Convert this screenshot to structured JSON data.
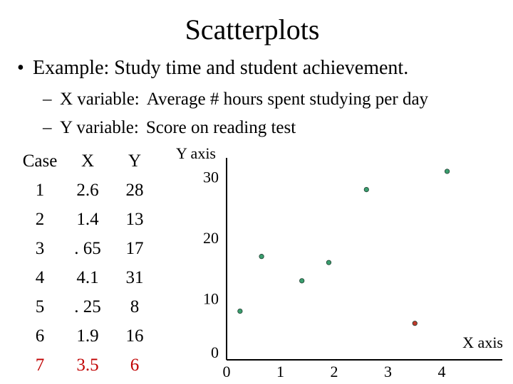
{
  "slide": {
    "title": "Scatterplots",
    "bullet": "Example:  Study time and student achievement.",
    "sub1_label": "X variable:",
    "sub1_text": "Average # hours spent studying per day",
    "sub2_label": "Y variable:",
    "sub2_text": "Score on reading test"
  },
  "table": {
    "headers": [
      "Case",
      "X",
      "Y"
    ],
    "rows": [
      {
        "case": "1",
        "x": "2.6",
        "y": "28"
      },
      {
        "case": "2",
        "x": "1.4",
        "y": "13"
      },
      {
        "case": "3",
        "x": ". 65",
        "y": "17"
      },
      {
        "case": "4",
        "x": "4.1",
        "y": "31"
      },
      {
        "case": "5",
        "x": ". 25",
        "y": "8"
      },
      {
        "case": "6",
        "x": "1.9",
        "y": "16"
      },
      {
        "case": "7",
        "x": "3.5",
        "y": "6"
      }
    ],
    "highlight_color": "#c00000"
  },
  "chart_data": {
    "type": "scatter",
    "xlabel": "X axis",
    "ylabel": "Y axis",
    "xlim": [
      0,
      4.5
    ],
    "ylim": [
      0,
      33
    ],
    "x_ticks": [
      0,
      1,
      2,
      3,
      4
    ],
    "y_ticks": [
      0,
      10,
      20,
      30
    ],
    "grid": false,
    "points": [
      {
        "x": 2.6,
        "y": 28,
        "color": "#3a9e6e"
      },
      {
        "x": 1.4,
        "y": 13,
        "color": "#3a9e6e"
      },
      {
        "x": 0.65,
        "y": 17,
        "color": "#3a9e6e"
      },
      {
        "x": 4.1,
        "y": 31,
        "color": "#3a9e6e"
      },
      {
        "x": 0.25,
        "y": 8,
        "color": "#3a9e6e"
      },
      {
        "x": 1.9,
        "y": 16,
        "color": "#3a9e6e"
      },
      {
        "x": 3.5,
        "y": 6,
        "color": "#c0392b"
      }
    ]
  }
}
